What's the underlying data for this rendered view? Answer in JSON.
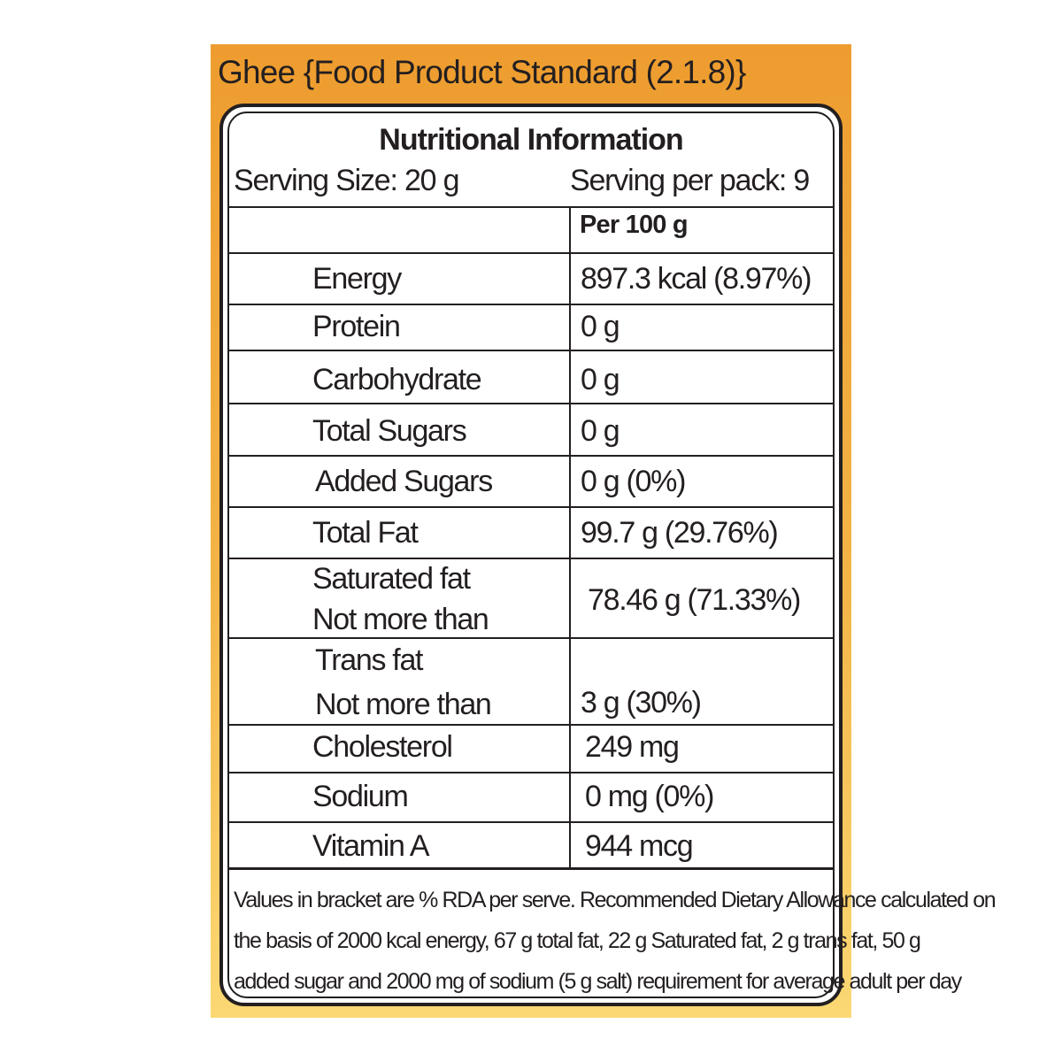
{
  "product_title": "Ghee {Food Product Standard (2.1.8)}",
  "panel": {
    "title": "Nutritional Information",
    "serving_size": "Serving Size:  20 g",
    "servings_per_pack": "Serving per pack:  9",
    "column_header": "Per 100 g"
  },
  "rows": [
    {
      "name": "Energy",
      "value": "897.3  kcal (8.97%)"
    },
    {
      "name": "Protein",
      "value": "0 g"
    },
    {
      "name": "Carbohydrate",
      "value": "0 g"
    },
    {
      "name": "Total Sugars",
      "value": "0 g"
    },
    {
      "name": "Added Sugars",
      "value": "0 g (0%)"
    },
    {
      "name": "Total Fat",
      "value": "99.7 g (29.76%)"
    },
    {
      "name": "Saturated fat",
      "name2": "Not more than",
      "value": "78.46 g (71.33%)"
    },
    {
      "name": "Trans fat",
      "name2": "Not more than",
      "value": "3 g (30%)"
    },
    {
      "name": "Cholesterol",
      "value": "249 mg"
    },
    {
      "name": "Sodium",
      "value": "0 mg (0%)"
    },
    {
      "name": "Vitamin A",
      "value": "944 mcg"
    }
  ],
  "footnote": {
    "line1": "Values in bracket are % RDA per serve. Recommended Dietary Allowance calculated on",
    "line2": "the basis of 2000 kcal energy, 67 g total fat, 22 g Saturated fat, 2 g trans fat, 50 g",
    "line3": "added sugar and 2000 mg of sodium (5 g salt) requirement for average adult per day"
  },
  "colors": {
    "panel_top": "#ee9c2f",
    "panel_bottom": "#fbd874",
    "ink": "#231f20"
  }
}
